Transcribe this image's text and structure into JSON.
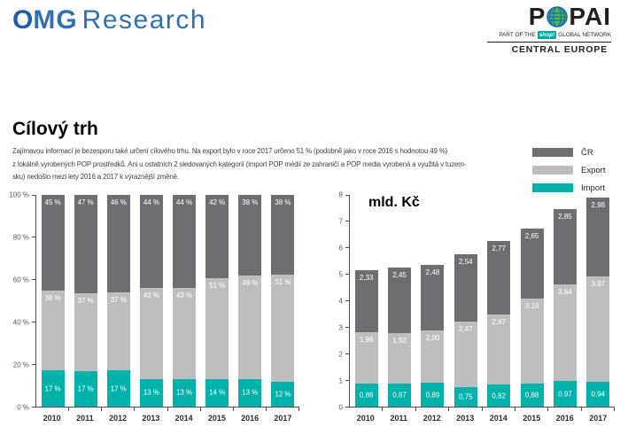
{
  "header": {
    "omg_logo": {
      "o": "O",
      "mg": "MG",
      "research": "Research"
    },
    "popai_logo": {
      "p": "P",
      "pai": "PAI",
      "subtitle_pre": "PART OF THE",
      "shop": "shop!",
      "subtitle_post": "GLOBAL NETWORK",
      "region": "CENTRAL EUROPE"
    }
  },
  "title": "Cílový trh",
  "paragraph_lines": [
    "Zajímavou informací je bezesporu také určení cílového trhu. Na export bylo v roce 2017 určeno 51 % (podobně jako v roce 2016 s hodnotou 49 %)",
    "z lokálně vyrobených POP prostředků. Ani u ostatních 2 sledovaných kategorií (import POP médií ze zahraničí a POP media vyrobená a využitá v tuzem-",
    "sku) nedošlo mezi lety 2016 a 2017 k výraznější změně."
  ],
  "legend": [
    {
      "label": "ČR",
      "color": "#6d6e71"
    },
    {
      "label": "Export",
      "color": "#bcbec0"
    },
    {
      "label": "Import",
      "color": "#00b2a9"
    }
  ],
  "colors": {
    "cr": "#6d6e71",
    "export": "#bcbec0",
    "import": "#00b2a9",
    "axis": "#4d4d4f",
    "tick_text": "#58595b"
  },
  "chart_data": [
    {
      "type": "bar",
      "stacked": true,
      "normalized": true,
      "title": "",
      "xlabel": "",
      "ylabel": "%",
      "ylim": [
        0,
        100
      ],
      "yticks": [
        "100 %",
        "80 %",
        "60 %",
        "40 %",
        "20 %",
        "0 %"
      ],
      "legend_position": "top-right",
      "grid": false,
      "categories": [
        "2010",
        "2011",
        "2012",
        "2013",
        "2014",
        "2015",
        "2016",
        "2017"
      ],
      "series": [
        {
          "id": "cr",
          "name": "ČR",
          "color": "#6d6e71",
          "label_pos": "top",
          "values": [
            45,
            47,
            46,
            44,
            44,
            42,
            38,
            38
          ],
          "labels": [
            "45 %",
            "47 %",
            "46 %",
            "44 %",
            "44 %",
            "42 %",
            "38 %",
            "38 %"
          ]
        },
        {
          "id": "export",
          "name": "Export",
          "color": "#bcbec0",
          "label_pos": "top",
          "values": [
            38,
            37,
            37,
            43,
            43,
            51,
            49,
            51
          ],
          "labels": [
            "38 %",
            "37 %",
            "37 %",
            "43 %",
            "43 %",
            "51 %",
            "49 %",
            "51 %"
          ]
        },
        {
          "id": "import",
          "name": "Import",
          "color": "#00b2a9",
          "label_pos": "center",
          "values": [
            17,
            17,
            17,
            13,
            13,
            14,
            13,
            12
          ],
          "labels": [
            "17 %",
            "17 %",
            "17 %",
            "13 %",
            "13 %",
            "14 %",
            "13 %",
            "12 %"
          ]
        }
      ]
    },
    {
      "type": "bar",
      "stacked": true,
      "normalized": false,
      "title": "mld. Kč",
      "xlabel": "",
      "ylabel": "mld. Kč",
      "ylim": [
        0,
        8
      ],
      "yticks": [
        "8",
        "7",
        "6",
        "5",
        "4",
        "3",
        "2",
        "1",
        "0"
      ],
      "legend_position": "top-right",
      "grid": false,
      "categories": [
        "2010",
        "2011",
        "2012",
        "2013",
        "2014",
        "2015",
        "2016",
        "2017"
      ],
      "series": [
        {
          "id": "cr",
          "name": "ČR",
          "color": "#6d6e71",
          "label_pos": "top",
          "values": [
            2.33,
            2.45,
            2.48,
            2.54,
            2.77,
            2.65,
            2.85,
            2.98
          ],
          "labels": [
            "2,33",
            "2,45",
            "2,48",
            "2,54",
            "2,77",
            "2,65",
            "2,85",
            "2,98"
          ]
        },
        {
          "id": "export",
          "name": "Export",
          "color": "#bcbec0",
          "label_pos": "top",
          "values": [
            1.96,
            1.92,
            2.0,
            2.47,
            2.67,
            3.19,
            3.64,
            3.97
          ],
          "labels": [
            "1,96",
            "1,92",
            "2,00",
            "2,47",
            "2,67",
            "3,19",
            "3,64",
            "3,97"
          ]
        },
        {
          "id": "import",
          "name": "Import",
          "color": "#00b2a9",
          "label_pos": "center",
          "values": [
            0.86,
            0.87,
            0.89,
            0.75,
            0.82,
            0.88,
            0.97,
            0.94
          ],
          "labels": [
            "0,86",
            "0,87",
            "0,89",
            "0,75",
            "0,82",
            "0,88",
            "0,97",
            "0,94"
          ]
        }
      ]
    }
  ]
}
